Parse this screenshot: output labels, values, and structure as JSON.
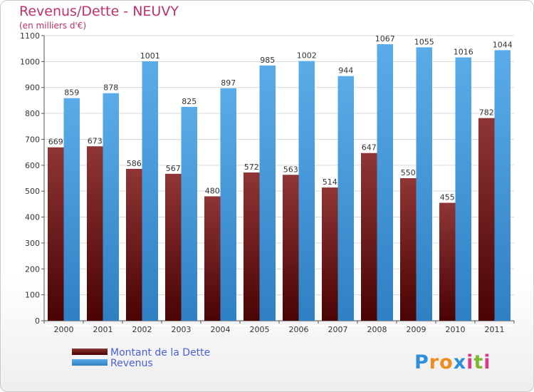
{
  "chart_data": {
    "type": "bar",
    "title": "Revenus/Dette - NEUVY",
    "subtitle": "(en milliers d'€)",
    "categories": [
      "2000",
      "2001",
      "2002",
      "2003",
      "2004",
      "2005",
      "2006",
      "2007",
      "2008",
      "2009",
      "2010",
      "2011"
    ],
    "series": [
      {
        "name": "Montant de la Dette",
        "color": "#7a1515",
        "values": [
          669,
          673,
          586,
          567,
          480,
          572,
          563,
          514,
          647,
          550,
          455,
          782
        ]
      },
      {
        "name": "Revenus",
        "color": "#4aa0e2",
        "values": [
          859,
          878,
          1001,
          825,
          897,
          985,
          1002,
          944,
          1067,
          1055,
          1016,
          1044
        ]
      }
    ],
    "ylim": [
      0,
      1100
    ],
    "yticks": [
      0,
      100,
      200,
      300,
      400,
      500,
      600,
      700,
      800,
      900,
      1000,
      1100
    ],
    "grid": true,
    "legend_position": "bottom-left"
  },
  "logo": {
    "letters": [
      "P",
      "r",
      "o",
      "x",
      "i",
      "t",
      "i"
    ],
    "colors": [
      "#2f8fd8",
      "#f08c1e",
      "#f08c1e",
      "#2f8fd8",
      "#d83a8a",
      "#7cb82f",
      "#d83a8a"
    ]
  }
}
